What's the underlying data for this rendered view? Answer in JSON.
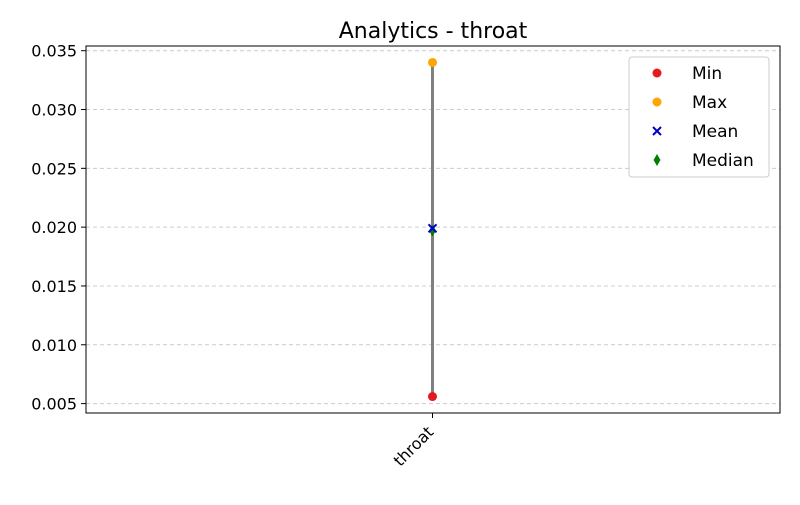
{
  "chart_data": {
    "type": "scatter",
    "title": "Analytics - throat",
    "xlabel": "",
    "ylabel": "",
    "categories": [
      "throat"
    ],
    "ylim": [
      0.0042,
      0.0354
    ],
    "yticks": [
      "0.005",
      "0.010",
      "0.015",
      "0.020",
      "0.025",
      "0.030",
      "0.035"
    ],
    "ytick_values": [
      0.005,
      0.01,
      0.015,
      0.02,
      0.025,
      0.03,
      0.035
    ],
    "grid": "y-dashed",
    "legend_position": "top-right",
    "range_line_color": "#808080",
    "series": [
      {
        "name": "Min",
        "marker": "circle",
        "color": "#e41a1c",
        "values": [
          0.0056
        ]
      },
      {
        "name": "Max",
        "marker": "circle",
        "color": "#ffa500",
        "values": [
          0.034
        ]
      },
      {
        "name": "Mean",
        "marker": "x",
        "color": "#0000cc",
        "values": [
          0.0199
        ]
      },
      {
        "name": "Median",
        "marker": "diamond",
        "color": "#008000",
        "values": [
          0.0197
        ]
      }
    ]
  }
}
